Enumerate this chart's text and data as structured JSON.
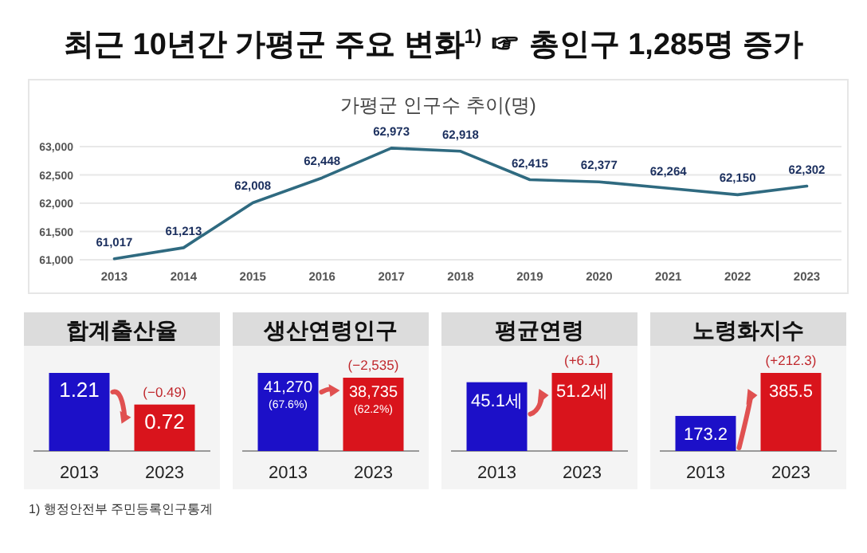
{
  "chart_data": [
    {
      "type": "line",
      "title": "최근 10년간 가평군 주요 변화$^{1)}$ ☞ 총인구 1,285명 증가",
      "subtitle": "가평군 인구수 추이(명)",
      "categories": [
        "2013",
        "2014",
        "2015",
        "2016",
        "2017",
        "2018",
        "2019",
        "2020",
        "2021",
        "2022",
        "2023"
      ],
      "series": [
        {
          "color": "#2f6a80",
          "values": [
            61017,
            61213,
            62008,
            62448,
            62973,
            62918,
            62415,
            62377,
            62264,
            62150,
            62302
          ],
          "value_labels": [
            "61,017",
            "61,213",
            "62,008",
            "62,448",
            "62,973",
            "62,918",
            "62,415",
            "62,377",
            "62,264",
            "62,150",
            "62,302"
          ]
        }
      ],
      "ylim": [
        61000,
        63000
      ],
      "yticks": [
        {
          "value": 61000,
          "label": "61,000"
        },
        {
          "value": 61500,
          "label": "61,500"
        },
        {
          "value": 62000,
          "label": "62,000"
        },
        {
          "value": 62500,
          "label": "62,500"
        },
        {
          "value": 63000,
          "label": "63,000"
        }
      ],
      "grid": "y",
      "marker": "none",
      "annotations": [
        "1) 행정안전부 주민등록인구통계"
      ]
    },
    {
      "type": "bar",
      "title": "합계출산율",
      "categories": [
        "2013",
        "2023"
      ],
      "values": [
        1.21,
        0.72
      ],
      "colors": [
        "#1c10c8",
        "#d9141c"
      ],
      "value_labels": [
        "1.21",
        "0.72"
      ],
      "annotations": [
        "(−0.49)"
      ]
    },
    {
      "type": "bar",
      "title": "생산연령인구",
      "categories": [
        "2013",
        "2023"
      ],
      "values": [
        41270,
        38735
      ],
      "colors": [
        "#1c10c8",
        "#d9141c"
      ],
      "value_labels": [
        "41,270 (67.6%)",
        "38,735 (62.2%)"
      ],
      "annotations": [
        "(−2,535)"
      ]
    },
    {
      "type": "bar",
      "title": "평균연령",
      "categories": [
        "2013",
        "2023"
      ],
      "values": [
        45.1,
        51.2
      ],
      "colors": [
        "#1c10c8",
        "#d9141c"
      ],
      "value_labels": [
        "45.1세",
        "51.2세"
      ],
      "annotations": [
        "(+6.1)"
      ]
    },
    {
      "type": "bar",
      "title": "노령화지수",
      "categories": [
        "2013",
        "2023"
      ],
      "values": [
        173.2,
        385.5
      ],
      "colors": [
        "#1c10c8",
        "#d9141c"
      ],
      "value_labels": [
        "173.2",
        "385.5"
      ],
      "annotations": [
        "(+212.3)"
      ]
    }
  ]
}
